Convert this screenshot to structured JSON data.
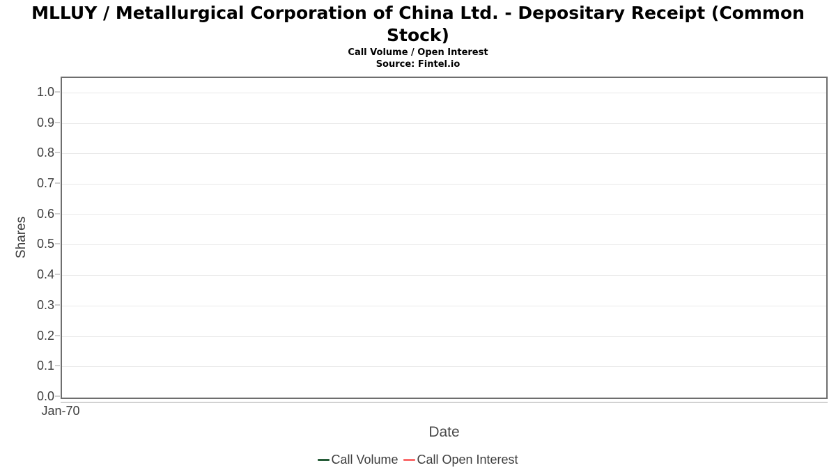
{
  "header": {
    "title_lines": [
      "MLLUY / Metallurgical Corporation of China Ltd. - Depositary Receipt (Common",
      "Stock)"
    ],
    "subtitle": "Call Volume / Open Interest",
    "source": "Source: Fintel.io"
  },
  "chart_data": {
    "type": "line",
    "title": "MLLUY / Metallurgical Corporation of China Ltd. - Depositary Receipt (Common Stock)",
    "subtitle": "Call Volume / Open Interest",
    "source": "Source: Fintel.io",
    "xlabel": "Date",
    "ylabel": "Shares",
    "x_tick_labels": [
      "Jan-70"
    ],
    "y_ticks": [
      0.0,
      0.1,
      0.2,
      0.3,
      0.4,
      0.5,
      0.6,
      0.7,
      0.8,
      0.9,
      1.0
    ],
    "ylim": [
      0,
      1.05
    ],
    "grid": true,
    "legend_position": "bottom",
    "series": [
      {
        "name": "Call Volume",
        "color": "#265c38",
        "x": [],
        "values": []
      },
      {
        "name": "Call Open Interest",
        "color": "#fa6b6b",
        "x": [],
        "values": []
      }
    ]
  }
}
